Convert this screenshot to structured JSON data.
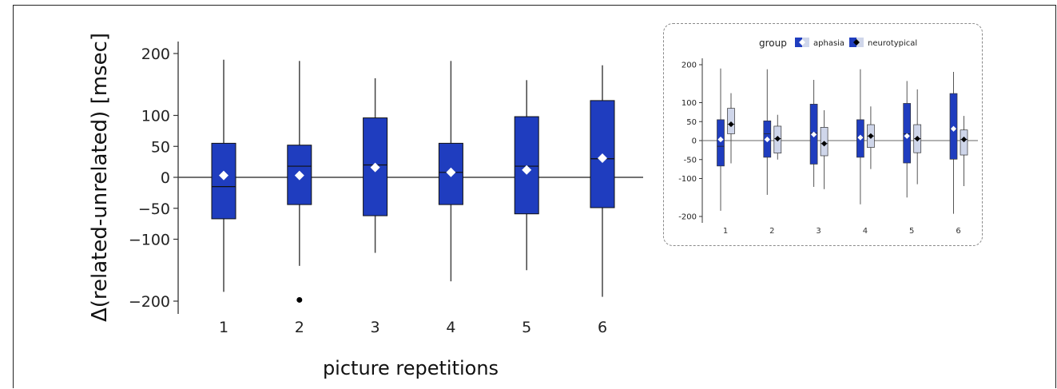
{
  "chart_data": [
    {
      "type": "box",
      "title": "",
      "xlabel": "picture repetitions",
      "ylabel": "Δ(related-unrelated) [msec]",
      "ylim": [
        -215,
        215
      ],
      "yticks": [
        -200,
        -100,
        -50,
        0,
        50,
        100,
        200
      ],
      "ytick_labels": [
        "−200",
        "−100",
        "−50",
        "0",
        "50",
        "100",
        "200"
      ],
      "categories": [
        "1",
        "2",
        "3",
        "4",
        "5",
        "6"
      ],
      "color": "#1f3dbf",
      "mean_marker_color": "#ffffff",
      "reference_line": 0,
      "boxes": [
        {
          "x": "1",
          "whisker_low": -185,
          "q1": -67,
          "median": -15,
          "q3": 55,
          "whisker_high": 190,
          "mean": 3,
          "outliers": []
        },
        {
          "x": "2",
          "whisker_low": -143,
          "q1": -44,
          "median": 18,
          "q3": 52,
          "whisker_high": 188,
          "mean": 3,
          "outliers": [
            -198
          ]
        },
        {
          "x": "3",
          "whisker_low": -122,
          "q1": -62,
          "median": 20,
          "q3": 96,
          "whisker_high": 160,
          "mean": 16,
          "outliers": []
        },
        {
          "x": "4",
          "whisker_low": -168,
          "q1": -44,
          "median": 8,
          "q3": 55,
          "whisker_high": 188,
          "mean": 8,
          "outliers": []
        },
        {
          "x": "5",
          "whisker_low": -150,
          "q1": -59,
          "median": 18,
          "q3": 98,
          "whisker_high": 157,
          "mean": 12,
          "outliers": []
        },
        {
          "x": "6",
          "whisker_low": -193,
          "q1": -49,
          "median": 30,
          "q3": 124,
          "whisker_high": 181,
          "mean": 31,
          "outliers": []
        }
      ]
    },
    {
      "type": "box",
      "title": "",
      "xlabel": "",
      "ylabel": "",
      "legend_title": "group",
      "legend_placement": "top",
      "ylim": [
        -215,
        215
      ],
      "yticks": [
        -200,
        -100,
        -50,
        0,
        50,
        100,
        200
      ],
      "ytick_labels": [
        "-200",
        "-100",
        "-50",
        "0",
        "50",
        "100",
        "200"
      ],
      "categories": [
        "1",
        "2",
        "3",
        "4",
        "5",
        "6"
      ],
      "reference_line": 0,
      "series": [
        {
          "name": "aphasia",
          "color": "#1f3dbf",
          "mean_marker_color": "#ffffff",
          "boxes": [
            {
              "x": "1",
              "whisker_low": -185,
              "q1": -67,
              "median": -15,
              "q3": 55,
              "whisker_high": 190,
              "mean": 3
            },
            {
              "x": "2",
              "whisker_low": -143,
              "q1": -44,
              "median": 18,
              "q3": 52,
              "whisker_high": 188,
              "mean": 3
            },
            {
              "x": "3",
              "whisker_low": -122,
              "q1": -62,
              "median": 20,
              "q3": 96,
              "whisker_high": 160,
              "mean": 16
            },
            {
              "x": "4",
              "whisker_low": -168,
              "q1": -44,
              "median": 8,
              "q3": 55,
              "whisker_high": 188,
              "mean": 8
            },
            {
              "x": "5",
              "whisker_low": -150,
              "q1": -59,
              "median": 18,
              "q3": 98,
              "whisker_high": 157,
              "mean": 12
            },
            {
              "x": "6",
              "whisker_low": -193,
              "q1": -49,
              "median": 30,
              "q3": 124,
              "whisker_high": 181,
              "mean": 31
            }
          ]
        },
        {
          "name": "neurotypical",
          "color": "#cfd6ea",
          "mean_marker_color": "#000000",
          "boxes": [
            {
              "x": "1",
              "whisker_low": -60,
              "q1": 18,
              "median": 43,
              "q3": 85,
              "whisker_high": 125,
              "mean": 43
            },
            {
              "x": "2",
              "whisker_low": -50,
              "q1": -33,
              "median": 5,
              "q3": 38,
              "whisker_high": 68,
              "mean": 5
            },
            {
              "x": "3",
              "whisker_low": -128,
              "q1": -40,
              "median": -8,
              "q3": 35,
              "whisker_high": 80,
              "mean": -8
            },
            {
              "x": "4",
              "whisker_low": -75,
              "q1": -18,
              "median": 12,
              "q3": 42,
              "whisker_high": 90,
              "mean": 12
            },
            {
              "x": "5",
              "whisker_low": -115,
              "q1": -32,
              "median": 5,
              "q3": 42,
              "whisker_high": 135,
              "mean": 5
            },
            {
              "x": "6",
              "whisker_low": -120,
              "q1": -38,
              "median": 3,
              "q3": 28,
              "whisker_high": 65,
              "mean": 3
            }
          ]
        }
      ]
    }
  ]
}
